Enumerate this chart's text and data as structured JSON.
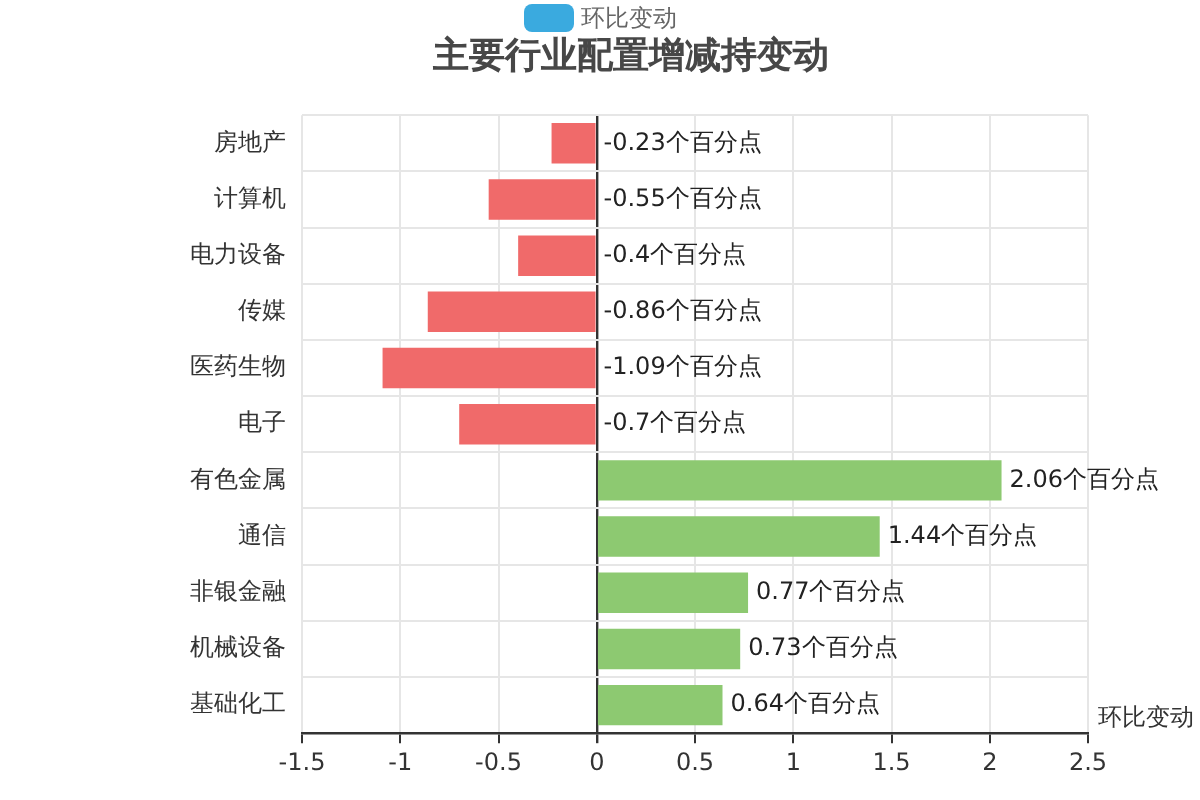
{
  "chart_data": {
    "type": "bar",
    "orientation": "horizontal",
    "title": "主要行业配置增减持变动",
    "xlabel": "环比变动",
    "categories": [
      "房地产",
      "计算机",
      "电力设备",
      "传媒",
      "医药生物",
      "电子",
      "有色金属",
      "通信",
      "非银金融",
      "机械设备",
      "基础化工"
    ],
    "series": [
      {
        "name": "环比变动",
        "color": "#3aaadf",
        "colors": [
          "#f06a6a",
          "#f06a6a",
          "#f06a6a",
          "#f06a6a",
          "#f06a6a",
          "#f06a6a",
          "#8dc971",
          "#8dc971",
          "#8dc971",
          "#8dc971",
          "#8dc971"
        ],
        "values": [
          -0.23,
          -0.55,
          -0.4,
          -0.86,
          -1.09,
          -0.7,
          2.06,
          1.44,
          0.77,
          0.73,
          0.64
        ],
        "value_labels": [
          "-0.23个百分点",
          "-0.55个百分点",
          "-0.4个百分点",
          "-0.86个百分点",
          "-1.09个百分点",
          "-0.7个百分点",
          "2.06个百分点",
          "1.44个百分点",
          "0.77个百分点",
          "0.73个百分点",
          "0.64个百分点"
        ]
      }
    ],
    "xlim": [
      -1.5,
      2.5
    ],
    "xticks": [
      -1.5,
      -1,
      -0.5,
      0,
      0.5,
      1,
      1.5,
      2,
      2.5
    ],
    "grid": true,
    "legend": "top"
  }
}
